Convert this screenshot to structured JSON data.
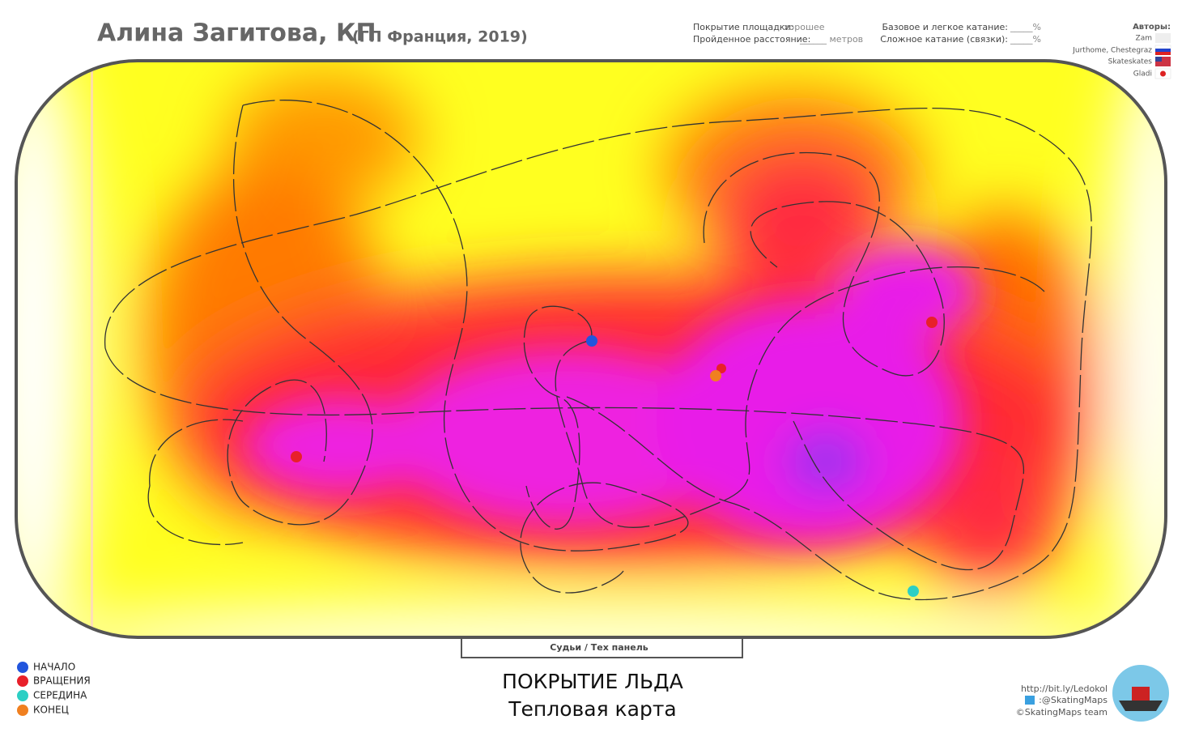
{
  "header": {
    "title": "Алина Загитова, КП",
    "subtitle": "(ГП Франция, 2019)"
  },
  "stats": [
    {
      "label": "Покрытие площадки:",
      "value": "хорошее"
    },
    {
      "label": "Пройденное расстояние:",
      "value": "______ метров"
    },
    {
      "label": "Базовое и легкое катание:",
      "value": "_____%"
    },
    {
      "label": "Сложное катание (связки):",
      "value": "_____%"
    }
  ],
  "authors": {
    "title": "Авторы:",
    "names": [
      "Zam",
      "Jurthome, Chestegraz",
      "Skateskates",
      "Gladi"
    ]
  },
  "judges": "Судьи / Тех панель",
  "legend": [
    "НАЧАЛО",
    "ВРАЩЕНИЯ",
    "СЕРЕДИНА",
    "КОНЕЦ"
  ],
  "caption": {
    "title": "ПОКРЫТИЕ ЛЬДА",
    "subtitle": "Тепловая карта"
  },
  "credits": [
    "http://bit.ly/Ledokol",
    ":@SkatingMaps",
    "©SkatingMaps team"
  ]
}
